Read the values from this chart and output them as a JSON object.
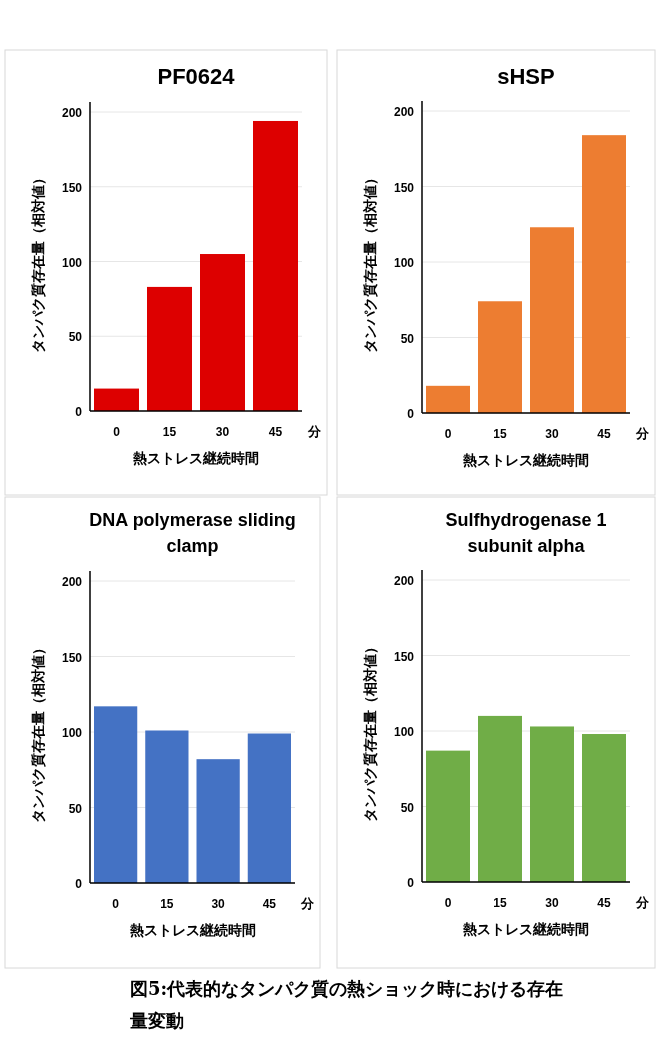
{
  "chart_data": [
    {
      "type": "bar",
      "title": "PF0624",
      "categories": [
        "0",
        "15",
        "30",
        "45"
      ],
      "values": [
        15,
        83,
        105,
        194
      ],
      "color": "#dd0000",
      "xlabel": "熱ストレス継続時間",
      "ylabel": "タンパク質存在量（相対値）",
      "ylim": [
        0,
        200
      ],
      "yticks": [
        0,
        50,
        100,
        150,
        200
      ],
      "grid": "y",
      "annotations": [
        "分"
      ]
    },
    {
      "type": "bar",
      "title": "sHSP",
      "categories": [
        "0",
        "15",
        "30",
        "45"
      ],
      "values": [
        18,
        74,
        123,
        184
      ],
      "color": "#ed7d31",
      "xlabel": "熱ストレス継続時間",
      "ylabel": "タンパク質存在量（相対値）",
      "ylim": [
        0,
        200
      ],
      "yticks": [
        0,
        50,
        100,
        150,
        200
      ],
      "grid": "y",
      "annotations": [
        "分"
      ]
    },
    {
      "type": "bar",
      "title": "DNA polymerase sliding clamp",
      "categories": [
        "0",
        "15",
        "30",
        "45"
      ],
      "values": [
        117,
        101,
        82,
        99
      ],
      "color": "#4472c4",
      "xlabel": "熱ストレス継続時間",
      "ylabel": "タンパク質存在量（相対値）",
      "ylim": [
        0,
        200
      ],
      "yticks": [
        0,
        50,
        100,
        150,
        200
      ],
      "grid": "y",
      "annotations": [
        "分"
      ]
    },
    {
      "type": "bar",
      "title": "Sulfhydrogenase 1 subunit alpha",
      "categories": [
        "0",
        "15",
        "30",
        "45"
      ],
      "values": [
        87,
        110,
        103,
        98
      ],
      "color": "#70ad47",
      "xlabel": "熱ストレス継続時間",
      "ylabel": "タンパク質存在量（相対値）",
      "ylim": [
        0,
        200
      ],
      "yticks": [
        0,
        50,
        100,
        150,
        200
      ],
      "grid": "y",
      "annotations": [
        "分",
        "図5:代表的なタンパク質の熱ショック時における存在量変動"
      ]
    }
  ]
}
